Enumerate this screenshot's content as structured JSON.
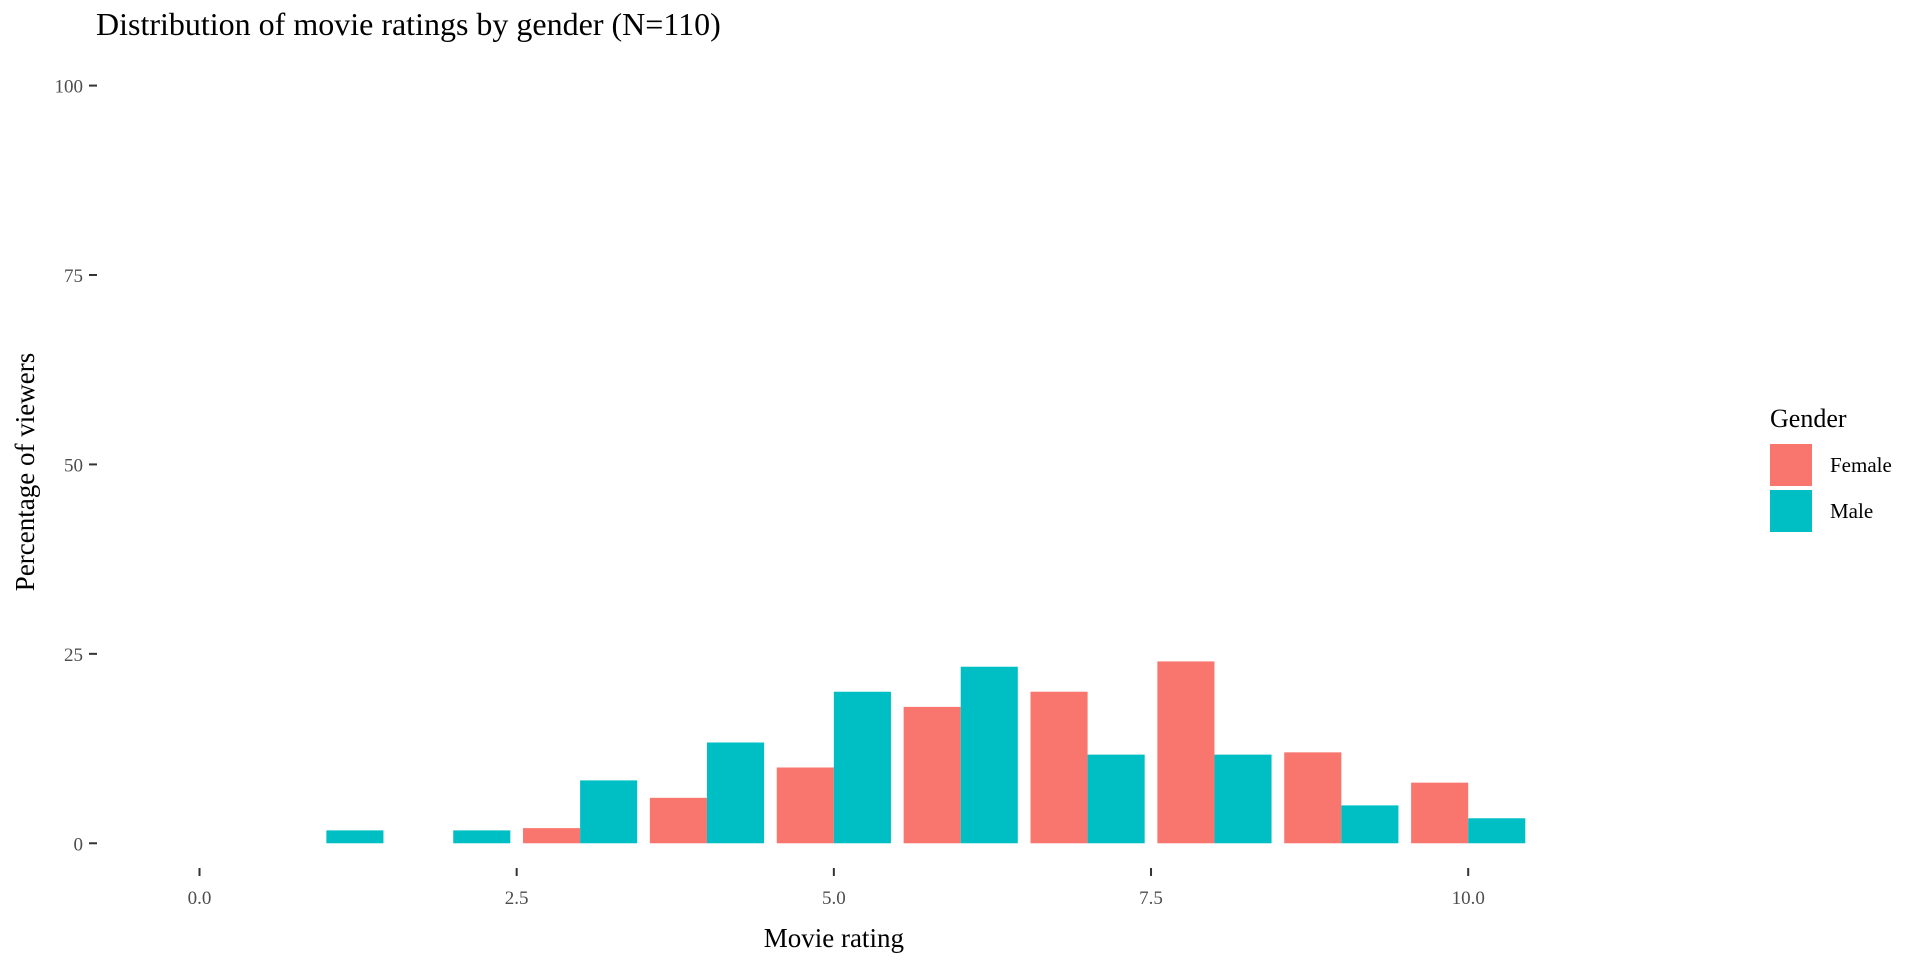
{
  "chart_data": {
    "type": "bar",
    "title": "Distribution of movie ratings by gender (N=110)",
    "xlabel": "Movie rating",
    "ylabel": "Percentage of viewers",
    "xlim": [
      -0.8,
      12.3
    ],
    "ylim": [
      -3,
      101
    ],
    "x_ticks": [
      "0.0",
      "2.5",
      "5.0",
      "7.5",
      "10.0"
    ],
    "x_tick_values": [
      0,
      2.5,
      5,
      7.5,
      10
    ],
    "y_ticks": [
      "0",
      "25",
      "50",
      "75",
      "100"
    ],
    "y_tick_values": [
      0,
      25,
      50,
      75,
      100
    ],
    "grid": false,
    "legend_position": "right",
    "legend_title": "Gender",
    "categories": [
      1,
      2,
      3,
      4,
      5,
      6,
      7,
      8,
      9,
      10
    ],
    "series": [
      {
        "name": "Female",
        "color": "#F8766D",
        "values": [
          0,
          0,
          2,
          6,
          10,
          18,
          20,
          24,
          12,
          8
        ]
      },
      {
        "name": "Male",
        "color": "#00BFC4",
        "values": [
          1.7,
          1.7,
          8.3,
          13.3,
          20,
          23.3,
          11.7,
          11.7,
          5,
          3.3
        ]
      }
    ]
  }
}
